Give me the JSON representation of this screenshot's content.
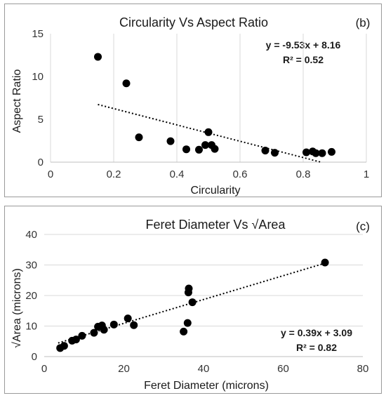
{
  "chart_data": [
    {
      "type": "scatter",
      "title": "Circularity Vs Aspect Ratio",
      "panel_label": "(b)",
      "xlabel": "Circularity",
      "ylabel": "Aspect Ratio",
      "xlim": [
        0,
        1
      ],
      "ylim": [
        0,
        15
      ],
      "xticks": [
        "0",
        "0.2",
        "0.4",
        "0.6",
        "0.8",
        "1"
      ],
      "yticks": [
        "0",
        "5",
        "10",
        "15"
      ],
      "grid": "vertical",
      "marker_color": "#000000",
      "trendline": {
        "style": "dotted",
        "slope": -9.53,
        "intercept": 8.16,
        "x_range": [
          0.15,
          0.86
        ]
      },
      "equation": "y = -9.53x + 8.16",
      "r_squared": "R² = 0.52",
      "points": [
        [
          0.15,
          12.3
        ],
        [
          0.24,
          9.2
        ],
        [
          0.28,
          2.9
        ],
        [
          0.38,
          2.45
        ],
        [
          0.43,
          1.5
        ],
        [
          0.47,
          1.45
        ],
        [
          0.49,
          2.0
        ],
        [
          0.5,
          3.5
        ],
        [
          0.51,
          2.0
        ],
        [
          0.52,
          1.55
        ],
        [
          0.68,
          1.35
        ],
        [
          0.71,
          1.1
        ],
        [
          0.81,
          1.15
        ],
        [
          0.83,
          1.25
        ],
        [
          0.84,
          1.05
        ],
        [
          0.86,
          1.05
        ],
        [
          0.89,
          1.2
        ]
      ]
    },
    {
      "type": "scatter",
      "title": "Feret Diameter Vs √Area",
      "panel_label": "(c)",
      "xlabel": "Feret Diameter (microns)",
      "ylabel": "√Area (microns)",
      "xlim": [
        0,
        80
      ],
      "ylim": [
        0,
        40
      ],
      "xticks": [
        "0",
        "20",
        "40",
        "60",
        "80"
      ],
      "yticks": [
        "0",
        "10",
        "20",
        "30",
        "40"
      ],
      "grid": "horizontal",
      "marker_color": "#000000",
      "trendline": {
        "style": "dotted",
        "slope": 0.39,
        "intercept": 3.09,
        "x_range": [
          3.5,
          70
        ]
      },
      "equation": "y = 0.39x + 3.09",
      "r_squared": "R² = 0.82",
      "points": [
        [
          4,
          2.8
        ],
        [
          5,
          3.5
        ],
        [
          7,
          5.2
        ],
        [
          8,
          5.6
        ],
        [
          9.5,
          6.8
        ],
        [
          12.5,
          7.8
        ],
        [
          13.5,
          9.8
        ],
        [
          14.5,
          10.2
        ],
        [
          15,
          8.8
        ],
        [
          17.5,
          10.5
        ],
        [
          21,
          12.5
        ],
        [
          22.5,
          10.3
        ],
        [
          35,
          8.2
        ],
        [
          36,
          11
        ],
        [
          36.2,
          21
        ],
        [
          36.3,
          22.3
        ],
        [
          37.2,
          17.8
        ],
        [
          70.5,
          30.8
        ]
      ]
    }
  ]
}
